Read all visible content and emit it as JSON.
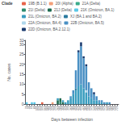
{
  "chart_data": {
    "type": "bar",
    "stacked": true,
    "xlabel": "Days between infection",
    "ylabel": "No. cases",
    "legend": "upper right",
    "legend_title": "Clade",
    "grid": false,
    "ylim": [
      0,
      32
    ],
    "yticks": [
      0,
      5,
      10,
      15,
      20,
      25,
      30
    ],
    "categories": [
      20,
      40,
      60,
      80,
      100,
      120,
      140,
      160,
      180,
      200,
      220,
      240,
      260,
      280,
      300,
      320,
      340,
      360,
      380,
      400,
      420,
      440,
      460,
      480,
      500,
      520,
      540,
      560,
      580,
      600,
      620,
      640,
      660,
      680,
      700,
      720
    ],
    "series": [
      {
        "name": "19B (B.1.1)",
        "color": "#e8634a",
        "values": [
          0,
          0,
          0,
          0,
          0,
          0,
          1,
          0,
          0,
          0,
          0,
          0,
          0,
          0,
          0,
          0,
          0,
          0,
          0,
          0,
          0,
          0,
          0,
          0,
          0,
          0,
          0,
          0,
          0,
          0,
          0,
          0,
          0,
          0,
          0,
          0
        ]
      },
      {
        "name": "20I (Alpha)",
        "color": "#f4a07a",
        "values": [
          0,
          0,
          0,
          0,
          0,
          0,
          0,
          0,
          0,
          0,
          1,
          0,
          0,
          0,
          0,
          0,
          0,
          0,
          0,
          0,
          0,
          0,
          0,
          0,
          0,
          0,
          0,
          0,
          0,
          0,
          0,
          0,
          0,
          0,
          0,
          0
        ]
      },
      {
        "name": "21A (Delta)",
        "color": "#3aab8c",
        "values": [
          0,
          0,
          0,
          0,
          0,
          0,
          0,
          0,
          0,
          0,
          0,
          0,
          0,
          0,
          0,
          0,
          0,
          0,
          0,
          0,
          0,
          0,
          0,
          0,
          0,
          0,
          0,
          0,
          0,
          0,
          0,
          0,
          0,
          0,
          0,
          0
        ]
      },
      {
        "name": "21I (Delta)",
        "color": "#2e8b6e",
        "values": [
          0,
          0,
          0,
          0,
          0,
          0,
          0,
          0,
          0,
          0,
          0,
          0,
          0,
          1,
          0,
          0,
          0,
          0,
          0,
          0,
          0,
          0,
          0,
          0,
          0,
          0,
          0,
          0,
          0,
          0,
          0,
          0,
          0,
          0,
          0,
          0
        ]
      },
      {
        "name": "21J (Delta)",
        "color": "#1e6b50",
        "values": [
          0,
          0,
          0,
          0,
          0,
          0,
          0,
          0,
          0,
          0,
          0,
          0,
          2,
          2,
          1,
          0,
          0,
          0,
          0,
          0,
          0,
          0,
          0,
          0,
          0,
          0,
          0,
          0,
          0,
          0,
          0,
          0,
          0,
          0,
          0,
          0
        ]
      },
      {
        "name": "21K (Omicron, BA.1)",
        "color": "#5bc8e8",
        "values": [
          1,
          0,
          1,
          1,
          0,
          0,
          0,
          0,
          0,
          0,
          0,
          0,
          0,
          0,
          0,
          0,
          0,
          0,
          0,
          0,
          0,
          0,
          0,
          0,
          0,
          0,
          0,
          0,
          0,
          0,
          0,
          0,
          0,
          0,
          0,
          0
        ]
      },
      {
        "name": "21L (Omicron, BA.2)",
        "color": "#3a9dbf",
        "values": [
          0,
          0,
          0,
          0,
          0,
          0,
          0,
          0,
          0,
          0,
          0,
          0,
          1,
          0,
          1,
          1,
          2,
          3,
          5,
          7,
          9,
          10,
          8,
          6,
          4,
          3,
          2,
          2,
          1,
          1,
          0,
          1,
          0,
          0,
          0,
          0
        ]
      },
      {
        "name": "XJ (BA.1 and BA.2)",
        "color": "#2a7a9f",
        "values": [
          0,
          0,
          0,
          0,
          0,
          0,
          0,
          0,
          0,
          0,
          0,
          0,
          0,
          0,
          0,
          0,
          0,
          0,
          0,
          1,
          0,
          0,
          0,
          0,
          0,
          0,
          0,
          0,
          0,
          0,
          0,
          0,
          0,
          0,
          0,
          0
        ]
      },
      {
        "name": "22A (Omicron, BA.4)",
        "color": "#b0d8ec",
        "values": [
          0,
          0,
          0,
          0,
          0,
          0,
          0,
          0,
          0,
          0,
          0,
          0,
          0,
          0,
          0,
          0,
          0,
          0,
          0,
          0,
          0,
          0,
          0,
          1,
          0,
          0,
          0,
          0,
          0,
          0,
          0,
          0,
          0,
          0,
          0,
          0
        ]
      },
      {
        "name": "22B (Omicron, BA.5)",
        "color": "#4a90c4",
        "values": [
          0,
          0,
          0,
          0,
          0,
          0,
          0,
          0,
          0,
          0,
          0,
          0,
          0,
          0,
          0,
          0,
          0,
          1,
          2,
          9,
          17,
          19,
          15,
          12,
          7,
          5,
          3,
          2,
          1,
          1,
          1,
          0,
          1,
          0,
          0,
          0
        ]
      },
      {
        "name": "22D (Omicron, BA.2.12.1)",
        "color": "#1a3a6e",
        "values": [
          0,
          0,
          0,
          0,
          0,
          0,
          0,
          0,
          0,
          0,
          0,
          0,
          0,
          0,
          0,
          0,
          0,
          0,
          0,
          0,
          1,
          2,
          1,
          1,
          0,
          0,
          1,
          0,
          0,
          0,
          0,
          0,
          0,
          0,
          0,
          0
        ]
      }
    ]
  }
}
